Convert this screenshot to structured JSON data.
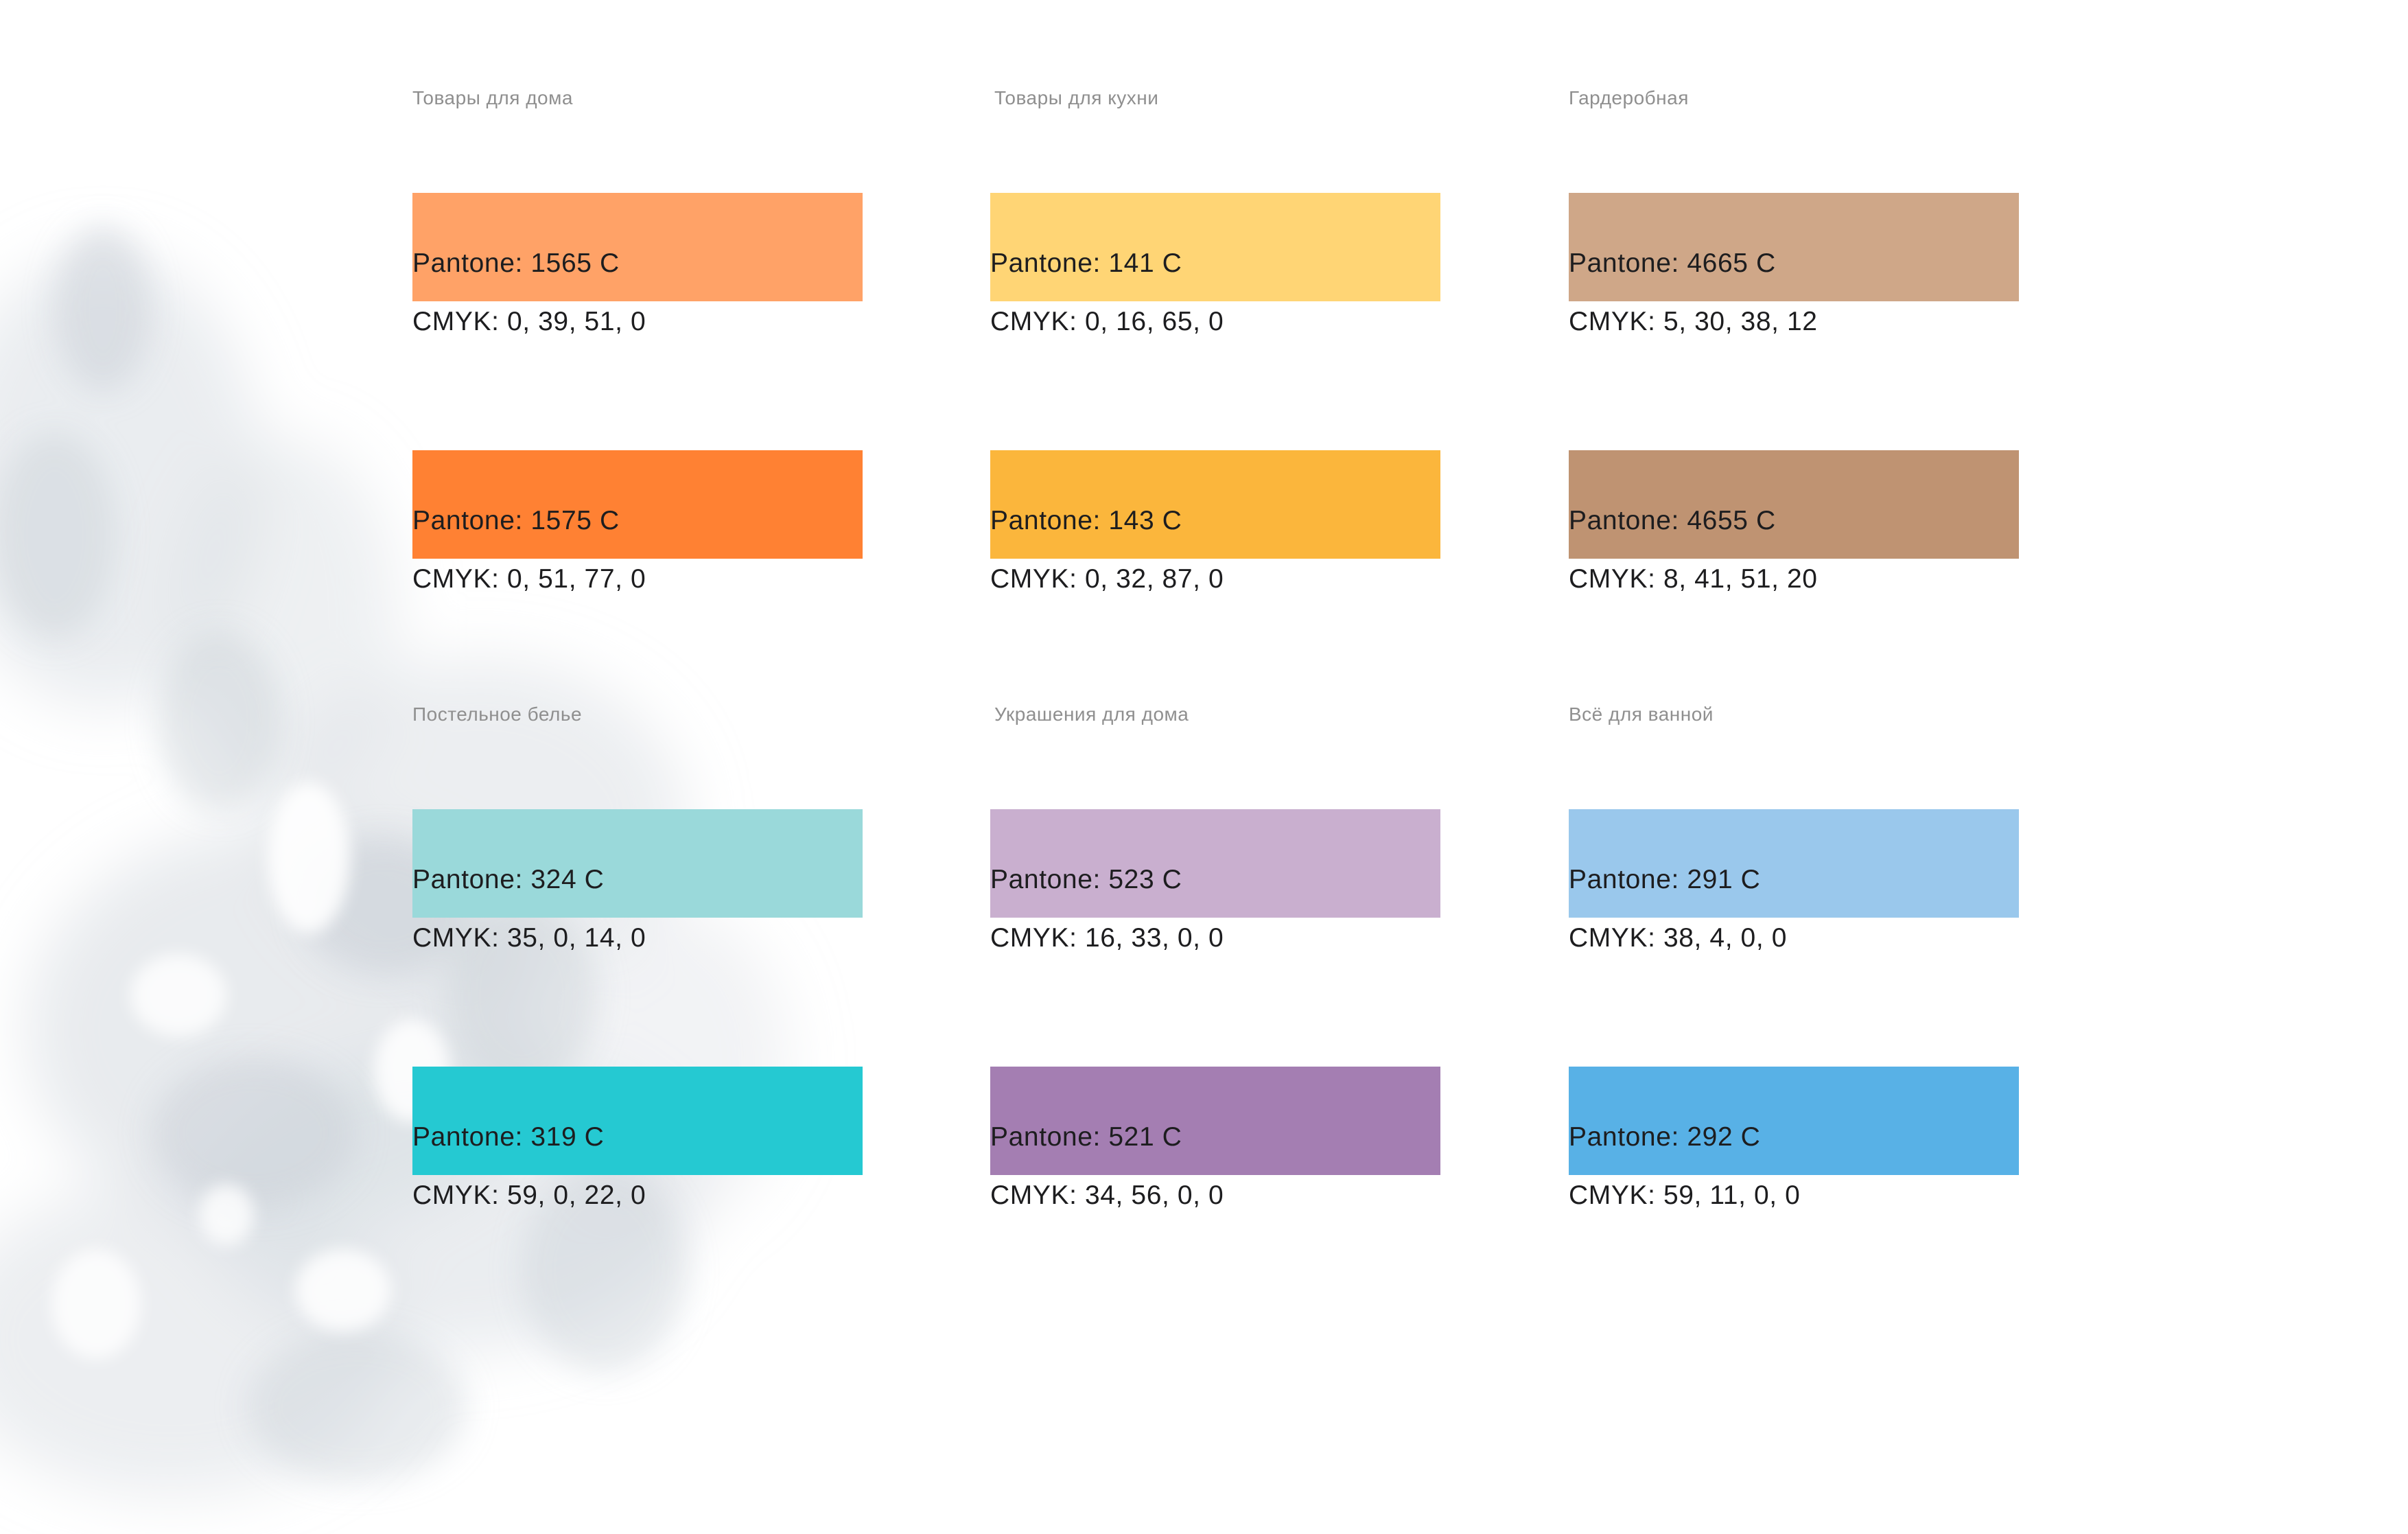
{
  "groups": [
    {
      "title": "Товары для дома",
      "colors": [
        {
          "hex": "#FFA267",
          "pantone": "Pantone: 1565 C",
          "cmyk": "CMYK: 0, 39, 51, 0"
        },
        {
          "hex": "#FF8133",
          "pantone": "Pantone: 1575 C",
          "cmyk": "CMYK: 0, 51, 77, 0"
        }
      ]
    },
    {
      "title": "Товары для кухни",
      "colors": [
        {
          "hex": "#FFD575",
          "pantone": "Pantone: 141 C",
          "cmyk": "CMYK: 0, 16, 65, 0"
        },
        {
          "hex": "#FBB63C",
          "pantone": "Pantone: 143 C",
          "cmyk": "CMYK: 0, 32, 87, 0"
        }
      ]
    },
    {
      "title": "Гардеробная",
      "colors": [
        {
          "hex": "#CFA788",
          "pantone": "Pantone: 4665 C",
          "cmyk": "CMYK: 5, 30, 38, 12"
        },
        {
          "hex": "#BF9372",
          "pantone": "Pantone: 4655 C",
          "cmyk": "CMYK: 8, 41, 51, 20"
        }
      ]
    },
    {
      "title": "Постельное белье",
      "colors": [
        {
          "hex": "#9AD9DA",
          "pantone": "Pantone: 324 C",
          "cmyk": "CMYK: 35, 0, 14, 0"
        },
        {
          "hex": "#25C9D2",
          "pantone": "Pantone: 319 C",
          "cmyk": "CMYK: 59, 0, 22, 0"
        }
      ]
    },
    {
      "title": "Украшения для дома",
      "colors": [
        {
          "hex": "#C9AFCF",
          "pantone": "Pantone: 523 C",
          "cmyk": "CMYK: 16, 33, 0, 0"
        },
        {
          "hex": "#A47EB2",
          "pantone": "Pantone: 521 C",
          "cmyk": "CMYK: 34, 56, 0, 0"
        }
      ]
    },
    {
      "title": "Всё для ванной",
      "colors": [
        {
          "hex": "#9AC8EC",
          "pantone": "Pantone: 291 C",
          "cmyk": "CMYK: 38, 4, 0, 0"
        },
        {
          "hex": "#58B1E6",
          "pantone": "Pantone: 292 C",
          "cmyk": "CMYK: 59, 11, 0, 0"
        }
      ]
    }
  ]
}
